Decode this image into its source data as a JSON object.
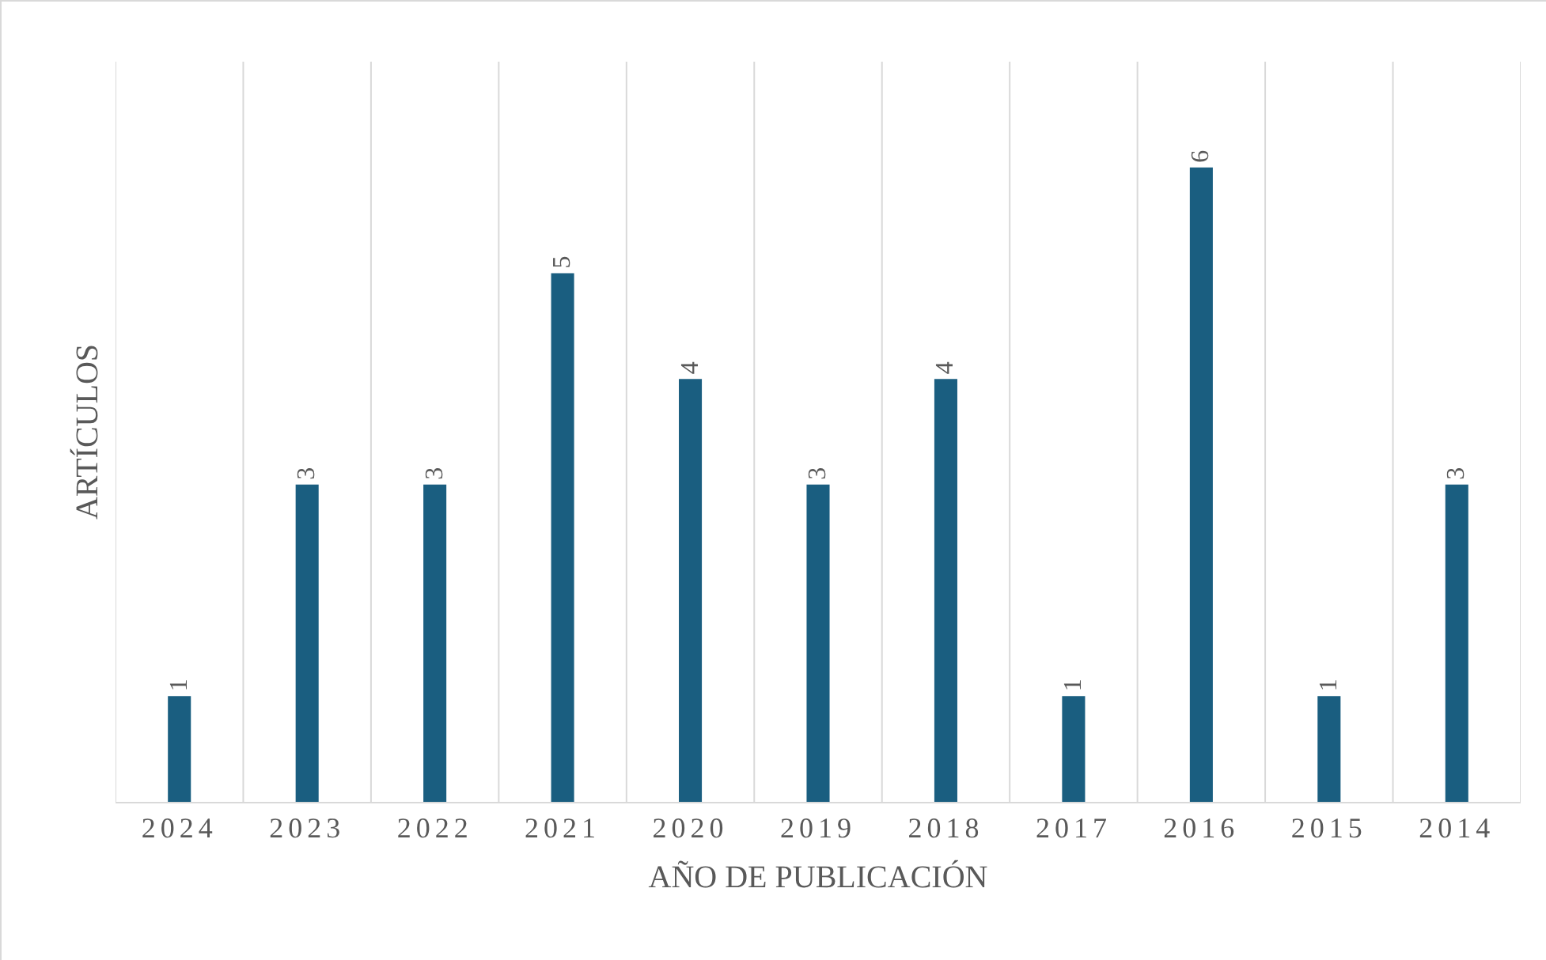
{
  "chart_data": {
    "type": "bar",
    "xlabel": "AÑO DE PUBLICACIÓN",
    "ylabel": "ARTÍCULOS",
    "categories": [
      "2024",
      "2023",
      "2022",
      "2021",
      "2020",
      "2019",
      "2018",
      "2017",
      "2016",
      "2015",
      "2014"
    ],
    "values": [
      1,
      3,
      3,
      5,
      4,
      3,
      4,
      1,
      6,
      1,
      3
    ],
    "color": "#1a5e80",
    "ylim": [
      0,
      7
    ],
    "data_labels": true,
    "grid": "x",
    "tick_labels": "x"
  }
}
